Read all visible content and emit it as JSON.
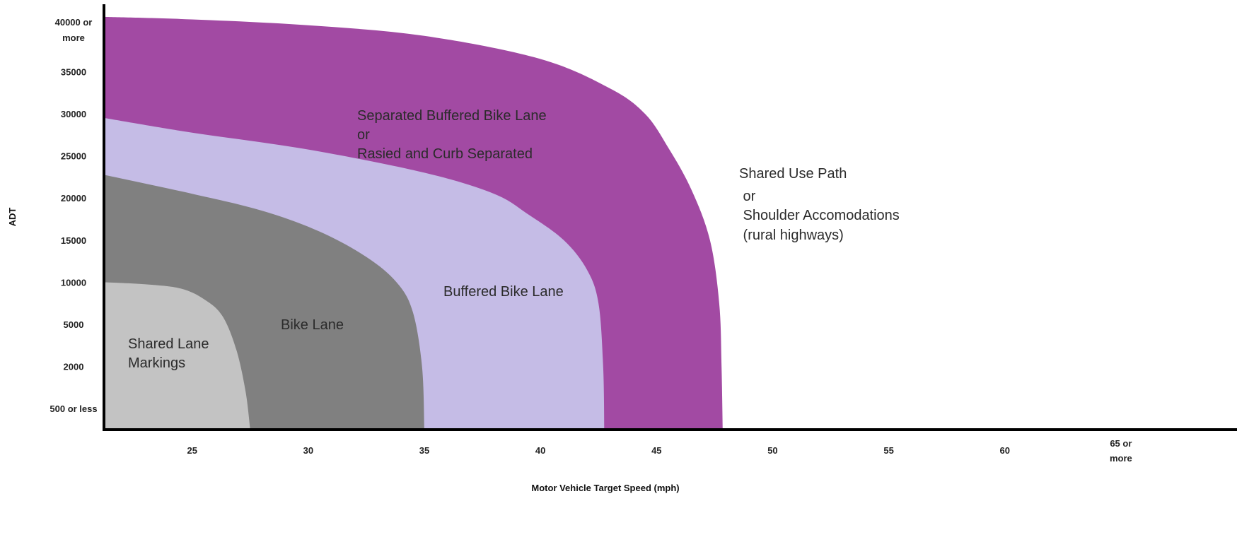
{
  "chart_data": {
    "type": "area",
    "title": "",
    "xlabel": "Motor Vehicle Target Speed (mph)",
    "ylabel": "ADT",
    "x_ticks": [
      {
        "label": "25",
        "value": 25
      },
      {
        "label": "30",
        "value": 30
      },
      {
        "label": "35",
        "value": 35
      },
      {
        "label": "40",
        "value": 40
      },
      {
        "label": "45",
        "value": 45
      },
      {
        "label": "50",
        "value": 50
      },
      {
        "label": "55",
        "value": 55
      },
      {
        "label": "60",
        "value": 60
      },
      {
        "label": "65 or\nmore",
        "value": 65
      }
    ],
    "y_ticks": [
      {
        "label": "500 or less",
        "level": 0
      },
      {
        "label": "2000",
        "level": 1
      },
      {
        "label": "5000",
        "level": 2
      },
      {
        "label": "10000",
        "level": 3
      },
      {
        "label": "15000",
        "level": 4
      },
      {
        "label": "20000",
        "level": 5
      },
      {
        "label": "25000",
        "level": 6
      },
      {
        "label": "30000",
        "level": 7
      },
      {
        "label": "35000",
        "level": 8
      },
      {
        "label": "40000 or\nmore",
        "level": 9
      }
    ],
    "xlim": [
      21.2,
      70
    ],
    "ylim": [
      -0.5,
      9.6
    ],
    "grid": false,
    "series": [
      {
        "name": "Separated Buffered Bike Lane\nor\nRasied and Curb Separated",
        "color": "#a24aa3",
        "boundary": [
          [
            21.2,
            9.3
          ],
          [
            25,
            9.24
          ],
          [
            30,
            9.1
          ],
          [
            35,
            8.85
          ],
          [
            40,
            8.3
          ],
          [
            43,
            7.6
          ],
          [
            44.5,
            7.0
          ],
          [
            45.5,
            6.2
          ],
          [
            46.5,
            5.2
          ],
          [
            47.3,
            4.0
          ],
          [
            47.7,
            2.5
          ],
          [
            47.8,
            1.0
          ],
          [
            47.85,
            -0.5
          ]
        ]
      },
      {
        "name": "Buffered Bike Lane",
        "color": "#c5bce6",
        "boundary": [
          [
            21.2,
            6.9
          ],
          [
            25,
            6.55
          ],
          [
            30,
            6.15
          ],
          [
            35,
            5.6
          ],
          [
            38,
            5.1
          ],
          [
            39.5,
            4.6
          ],
          [
            41,
            4.0
          ],
          [
            42,
            3.3
          ],
          [
            42.5,
            2.5
          ],
          [
            42.7,
            1.0
          ],
          [
            42.75,
            -0.5
          ]
        ]
      },
      {
        "name": "Bike Lane",
        "color": "#808080",
        "boundary": [
          [
            21.2,
            5.55
          ],
          [
            25,
            5.1
          ],
          [
            28,
            4.7
          ],
          [
            30.5,
            4.2
          ],
          [
            32.5,
            3.6
          ],
          [
            33.8,
            3.0
          ],
          [
            34.5,
            2.3
          ],
          [
            34.9,
            1.0
          ],
          [
            35.0,
            -0.5
          ]
        ]
      },
      {
        "name": "Shared Lane\nMarkings",
        "color": "#c3c3c3",
        "boundary": [
          [
            21.2,
            3.0
          ],
          [
            23,
            2.95
          ],
          [
            24.5,
            2.85
          ],
          [
            25.5,
            2.6
          ],
          [
            26.3,
            2.2
          ],
          [
            26.9,
            1.4
          ],
          [
            27.3,
            0.4
          ],
          [
            27.5,
            -0.5
          ]
        ]
      }
    ],
    "outside_label": "Shared Use Path\n or\n Shoulder Accomodations\n (rural highways)"
  }
}
